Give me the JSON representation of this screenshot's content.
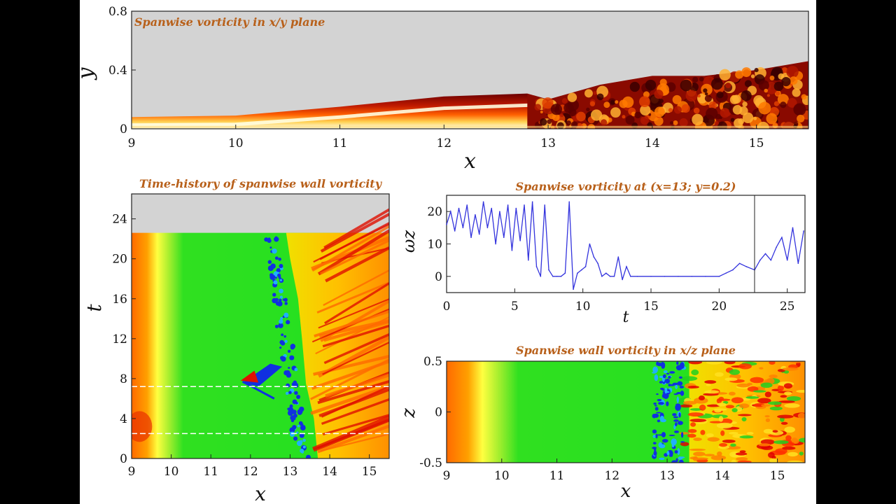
{
  "chart_data": [
    {
      "type": "heatmap",
      "title": "Spanwise vorticity in x/y plane",
      "xlabel": "x",
      "ylabel": "y",
      "xlim": [
        9,
        15.5
      ],
      "ylim": [
        0,
        0.8
      ],
      "xticks": [
        "9",
        "10",
        "11",
        "12",
        "13",
        "14",
        "15"
      ],
      "yticks": [
        "0",
        "0.4",
        "0.8"
      ],
      "boundary_layer_edge": {
        "x": [
          9,
          10,
          11,
          12,
          12.8,
          13,
          13.5,
          14,
          14.5,
          15,
          15.5
        ],
        "y": [
          0.08,
          0.09,
          0.15,
          0.22,
          0.24,
          0.2,
          0.3,
          0.36,
          0.36,
          0.4,
          0.46
        ]
      },
      "colormap": [
        "#6b0000",
        "#c01a00",
        "#ff6000",
        "#ffd050",
        "#fffff0"
      ]
    },
    {
      "type": "heatmap",
      "title": "Time-history of spanwise wall vorticity",
      "xlabel": "x",
      "ylabel": "t",
      "xlim": [
        9,
        15.5
      ],
      "ylim": [
        0,
        26.5
      ],
      "data_tmax": 22.6,
      "xticks": [
        "9",
        "10",
        "11",
        "12",
        "13",
        "14",
        "15"
      ],
      "yticks": [
        "0",
        "4",
        "8",
        "12",
        "16",
        "20",
        "24"
      ],
      "markers_t": [
        2.5,
        7.2
      ],
      "colormap": [
        "#0030e0",
        "#20c0ff",
        "#10e020",
        "#ffff30",
        "#ff8000",
        "#e00000"
      ]
    },
    {
      "type": "line",
      "title": "Spanwise vorticity at (x=13; y=0.2)",
      "xlabel": "t",
      "ylabel": "ωz",
      "xlim": [
        0,
        26.3
      ],
      "ylim": [
        -5,
        25
      ],
      "xticks": [
        "0",
        "5",
        "10",
        "15",
        "20",
        "25"
      ],
      "yticks": [
        "0",
        "10",
        "20"
      ],
      "marker_t": 22.6,
      "color": "#3333dd",
      "series": [
        {
          "x": [
            0,
            0.3,
            0.6,
            0.9,
            1.2,
            1.5,
            1.8,
            2.1,
            2.4,
            2.7,
            3.0,
            3.3,
            3.6,
            3.9,
            4.2,
            4.5,
            4.8,
            5.1,
            5.4,
            5.7,
            6.0,
            6.3,
            6.6,
            6.9,
            7.2,
            7.5,
            7.8,
            8.1,
            8.4,
            8.7,
            9.0,
            9.3,
            9.6,
            9.9,
            10.2,
            10.5,
            10.8,
            11.1,
            11.4,
            11.7,
            12.0,
            12.3,
            12.6,
            12.9,
            13.2,
            13.5,
            14.0,
            15.0,
            16.0,
            17.0,
            18.0,
            19.0,
            20.0,
            20.5,
            21.0,
            21.5,
            22.0,
            22.6,
            23.0,
            23.4,
            23.8,
            24.2,
            24.6,
            25.0,
            25.4,
            25.8,
            26.2
          ],
          "y": [
            16,
            20,
            14,
            21,
            15,
            22,
            12,
            19,
            13,
            23,
            15,
            21,
            10,
            20,
            12,
            22,
            8,
            21,
            11,
            22,
            5,
            23,
            3,
            0,
            22,
            2,
            0,
            0,
            0,
            1,
            23,
            -4,
            1,
            2,
            3,
            10,
            6,
            4,
            0,
            1,
            0,
            0,
            6,
            -1,
            3,
            0,
            0,
            0,
            0,
            0,
            0,
            0,
            0,
            1,
            2,
            4,
            3,
            2,
            5,
            7,
            5,
            9,
            12,
            5,
            15,
            4,
            14
          ]
        }
      ]
    },
    {
      "type": "heatmap",
      "title": "Spanwise wall vorticity in x/z plane",
      "xlabel": "x",
      "ylabel": "z",
      "xlim": [
        9,
        15.5
      ],
      "ylim": [
        -0.5,
        0.5
      ],
      "xticks": [
        "9",
        "10",
        "11",
        "12",
        "13",
        "14",
        "15"
      ],
      "yticks": [
        "-0.5",
        "0",
        "0.5"
      ],
      "colormap": [
        "#0030e0",
        "#20c0ff",
        "#10e020",
        "#ffff30",
        "#ff8000",
        "#e00000"
      ]
    }
  ]
}
